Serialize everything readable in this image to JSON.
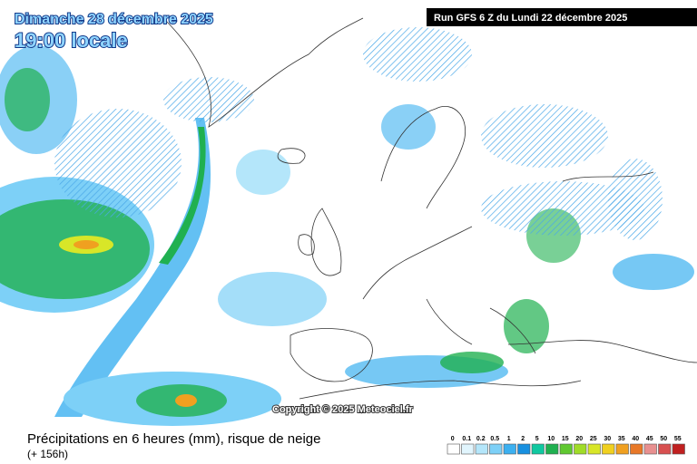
{
  "header": {
    "date": "Dimanche 28 décembre 2025",
    "time": "19:00 locale",
    "run": "Run GFS 6 Z du Lundi 22 décembre 2025"
  },
  "copyright": "Copyright © 2025 Meteociel.fr",
  "caption": {
    "title": "Précipitations en 6 heures (mm), risque de neige",
    "lead": "(+ 156h)"
  },
  "legend": [
    {
      "label": "0",
      "color": "#ffffff"
    },
    {
      "label": "0.1",
      "color": "#e1f5fd"
    },
    {
      "label": "0.2",
      "color": "#b4e6fa"
    },
    {
      "label": "0.5",
      "color": "#7dd0f7"
    },
    {
      "label": "1",
      "color": "#3cb0f0"
    },
    {
      "label": "2",
      "color": "#1890e0"
    },
    {
      "label": "5",
      "color": "#10c8a0"
    },
    {
      "label": "10",
      "color": "#20b050"
    },
    {
      "label": "15",
      "color": "#60c830"
    },
    {
      "label": "20",
      "color": "#a0dc28"
    },
    {
      "label": "25",
      "color": "#d8e628"
    },
    {
      "label": "30",
      "color": "#f0d020"
    },
    {
      "label": "35",
      "color": "#f0a020"
    },
    {
      "label": "40",
      "color": "#e87828"
    },
    {
      "label": "45",
      "color": "#e89090"
    },
    {
      "label": "50",
      "color": "#d85050"
    },
    {
      "label": "55",
      "color": "#c02020"
    }
  ]
}
